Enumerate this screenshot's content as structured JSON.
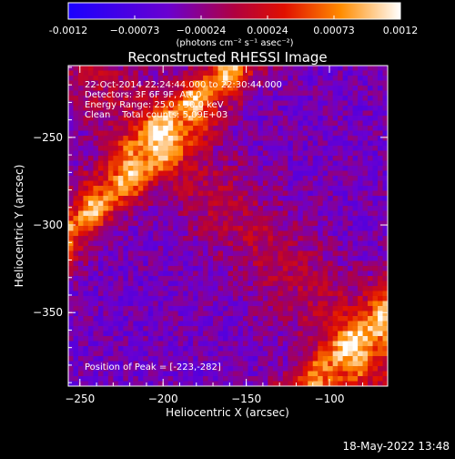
{
  "colorbar": {
    "ticks": [
      "-0.0012",
      "−0.00073",
      "−0.00024",
      "0.00024",
      "0.00073",
      "0.0012"
    ],
    "unit_label": "(photons cm⁻² s⁻¹ asec⁻²)"
  },
  "chart_data": {
    "type": "heatmap",
    "title": "Reconstructed RHESSI Image",
    "xlabel": "Heliocentric X (arcsec)",
    "ylabel": "Heliocentric Y (arcsec)",
    "xlim": [
      -257,
      -65
    ],
    "ylim": [
      -392,
      -209
    ],
    "xticks": [
      -250,
      -200,
      -150,
      -100
    ],
    "xtick_labels": [
      "−250",
      "−200",
      "−150",
      "−100"
    ],
    "yticks": [
      -250,
      -300,
      -350
    ],
    "ytick_labels": [
      "−250",
      "−300",
      "−350"
    ],
    "colorbar_range": [
      -0.0012,
      0.0012
    ],
    "colormap": [
      "#0000ff",
      "#6a00c8",
      "#c8002a",
      "#ff7a00",
      "#ffffff"
    ],
    "annotations": {
      "time": "22-Oct-2014 22:24:44.000 to 22:30:44.000",
      "detectors": "Detectors: 3F 6F 9F, Att 0",
      "energy": "Energy Range: 25.0 - 50.0 keV",
      "clean": "Clean    Total counts: 5.09E+03",
      "peak": "Position of Peak = [-223,-282]"
    }
  },
  "footer": {
    "timestamp": "18-May-2022 13:48"
  }
}
